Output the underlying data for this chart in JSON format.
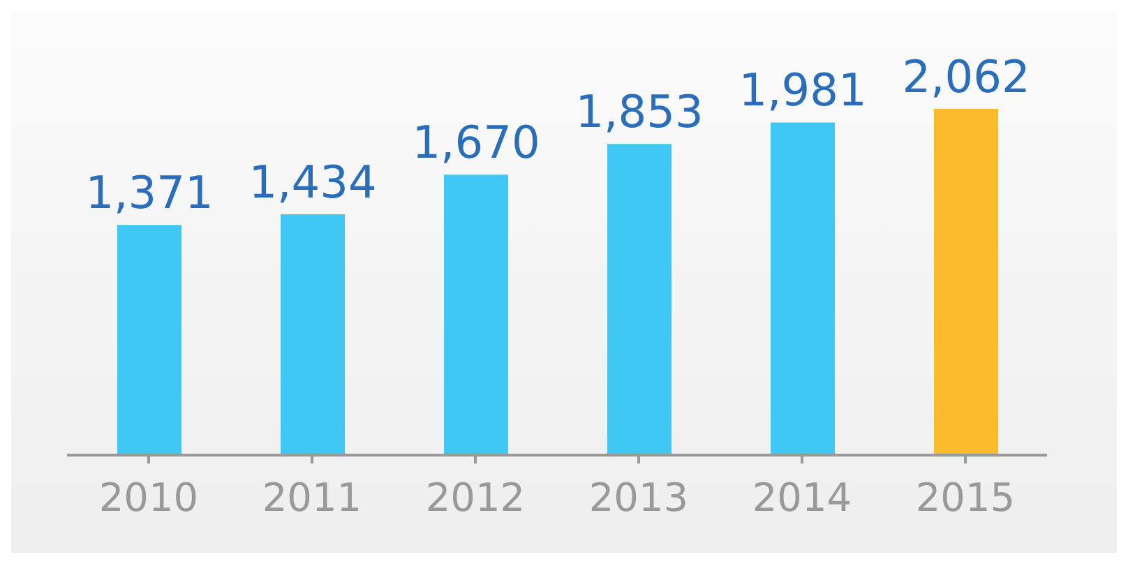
{
  "chart_data": {
    "type": "bar",
    "categories": [
      "2010",
      "2011",
      "2012",
      "2013",
      "2014",
      "2015"
    ],
    "values": [
      1371,
      1434,
      1670,
      1853,
      1981,
      2062
    ],
    "colors": [
      "#40c8f4",
      "#40c8f4",
      "#40c8f4",
      "#40c8f4",
      "#40c8f4",
      "#fbbc2c"
    ],
    "value_labels": [
      "1,371",
      "1,434",
      "1,670",
      "1,853",
      "1,981",
      "2,062"
    ],
    "tick_labels": "x"
  }
}
